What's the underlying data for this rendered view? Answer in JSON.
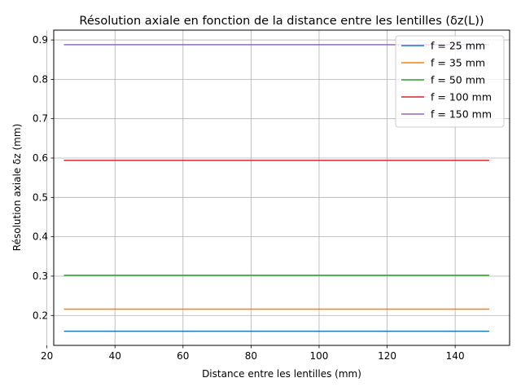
{
  "chart_data": {
    "type": "line",
    "title": "Résolution axiale en fonction de la distance entre les lentilles (δz(L))",
    "xlabel": "Distance entre les lentilles (mm)",
    "ylabel": "Résolution axiale δz (mm)",
    "xlim": [
      22,
      156
    ],
    "ylim": [
      0.124,
      0.925
    ],
    "xticks": [
      20,
      40,
      60,
      80,
      100,
      120,
      140
    ],
    "yticks": [
      0.2,
      0.3,
      0.4,
      0.5,
      0.6,
      0.7,
      0.8,
      0.9
    ],
    "grid": true,
    "legend_position": "top-right",
    "series": [
      {
        "name": "f = 25 mm",
        "color": "#1f77b4",
        "x": [
          25,
          150
        ],
        "y": [
          0.16,
          0.16
        ]
      },
      {
        "name": "f = 35 mm",
        "color": "#ff7f0e",
        "x": [
          25,
          150
        ],
        "y": [
          0.216,
          0.216
        ]
      },
      {
        "name": "f = 50 mm",
        "color": "#2ca02c",
        "x": [
          25,
          150
        ],
        "y": [
          0.302,
          0.302
        ]
      },
      {
        "name": "f = 100 mm",
        "color": "#d62728",
        "x": [
          25,
          150
        ],
        "y": [
          0.594,
          0.594
        ]
      },
      {
        "name": "f = 150 mm",
        "color": "#9467bd",
        "x": [
          25,
          150
        ],
        "y": [
          0.888,
          0.888
        ]
      }
    ]
  }
}
